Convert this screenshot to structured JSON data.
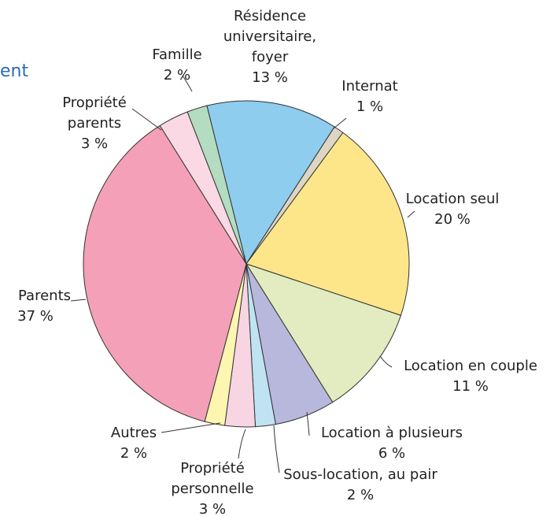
{
  "chart_data": {
    "type": "pie",
    "title": "ent",
    "categories": [
      "Résidence universitaire, foyer",
      "Internat",
      "Location seul",
      "Location en couple",
      "Location à plusieurs",
      "Sous-location, au pair",
      "Propriété personnelle",
      "Autres",
      "Parents",
      "Propriété parents",
      "Famille"
    ],
    "values": [
      13,
      1,
      20,
      11,
      6,
      2,
      3,
      2,
      37,
      3,
      2
    ],
    "value_labels": [
      "13 %",
      "1 %",
      "20 %",
      "11 %",
      "6 %",
      "2 %",
      "3 %",
      "2 %",
      "37 %",
      "3 %",
      "2 %"
    ],
    "colors": [
      "#8ecdee",
      "#ddd6c4",
      "#fde68a",
      "#e2ecc0",
      "#b8b8dc",
      "#bfe3f2",
      "#f7d5e3",
      "#fdf6b0",
      "#f4a0b8",
      "#fad9e5",
      "#b4dcc0"
    ]
  }
}
